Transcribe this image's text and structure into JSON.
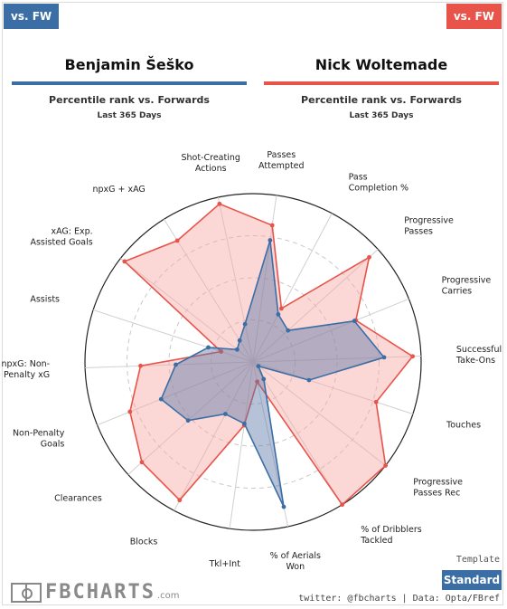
{
  "header": {
    "left_badge": "vs. FW",
    "right_badge": "vs. FW",
    "player_left": "Benjamin Šeško",
    "player_right": "Nick Woltemade",
    "subtitle_left": "Percentile rank vs. Forwards",
    "subtitle_right": "Percentile rank vs. Forwards",
    "period_left": "Last 365 Days",
    "period_right": "Last 365 Days"
  },
  "colors": {
    "left": "#3b6ea5",
    "right": "#e8534a",
    "right_fill": "#f7a8a4",
    "left_fill": "#5e78a8"
  },
  "chart_data": {
    "type": "radar",
    "axes": [
      [
        "Passes",
        "Attempted"
      ],
      [
        "Pass",
        "Completion %"
      ],
      [
        "Progressive",
        "Passes"
      ],
      [
        "Progressive",
        "Carries"
      ],
      [
        "Successful",
        "Take-Ons"
      ],
      [
        "Touches"
      ],
      [
        "Progressive",
        "Passes Rec"
      ],
      [
        "% of Dribblers",
        "Tackled"
      ],
      [
        "% of Aerials",
        "Won"
      ],
      [
        "Tkl+Int"
      ],
      [
        "Blocks"
      ],
      [
        "Clearances"
      ],
      [
        "Non-Penalty",
        "Goals"
      ],
      [
        "npxG: Non-",
        "Penalty xG"
      ],
      [
        "Assists"
      ],
      [
        "xAG: Exp.",
        "Assisted Goals"
      ],
      [
        "npxG + xAG"
      ],
      [
        "Shot-Creating",
        "Actions"
      ]
    ],
    "range": [
      0,
      100
    ],
    "series": [
      {
        "name": "Benjamin Šeško",
        "values": [
          73,
          32,
          28,
          65,
          78,
          35,
          4,
          12,
          88,
          37,
          35,
          52,
          59,
          46,
          28,
          12,
          15,
          23
        ]
      },
      {
        "name": "Nick Woltemade",
        "values": [
          82,
          36,
          93,
          66,
          95,
          77,
          100,
          100,
          12,
          38,
          93,
          89,
          79,
          67,
          20,
          97,
          85,
          96
        ]
      }
    ]
  },
  "footer": {
    "logo_text": "FBCHARTS",
    "logo_suffix": ".com",
    "template_label": "Template",
    "standard_button": "Standard",
    "credits": "twitter: @fbcharts | Data: Opta/FBref"
  }
}
